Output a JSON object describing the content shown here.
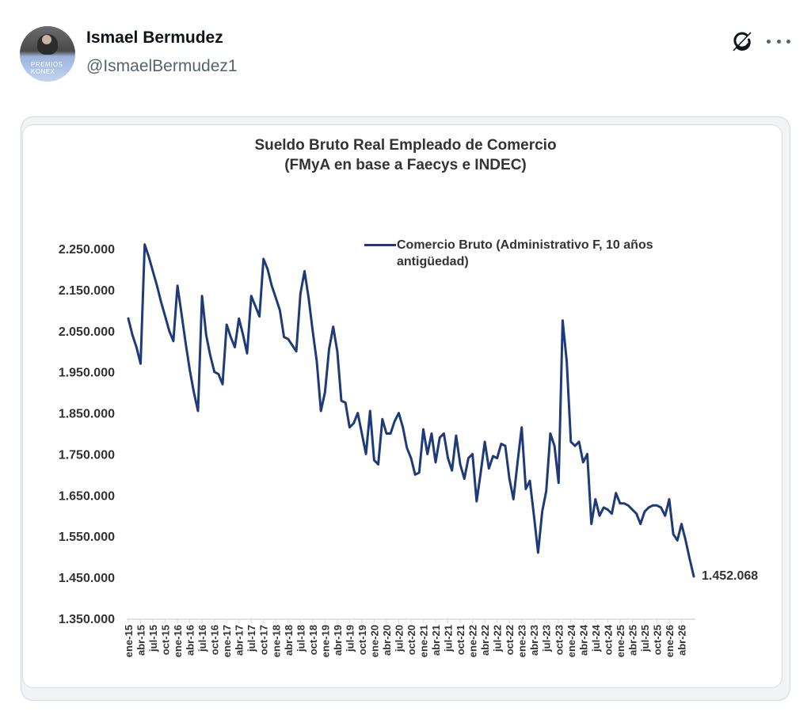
{
  "post": {
    "author_name": "Ismael Bermudez",
    "author_handle": "@IsmaelBermudez1",
    "avatar_caption": "PREMIOS KONEX",
    "icons": {
      "grok": "grok-icon",
      "more": "more-options-icon"
    }
  },
  "chart_data": {
    "type": "line",
    "title": "Sueldo Bruto Real Empleado de Comercio",
    "subtitle": "(FMyA en base a Faecys e INDEC)",
    "xlabel": "",
    "ylabel": "",
    "ylim": [
      1350000,
      2250000
    ],
    "yticks": [
      2250000,
      2150000,
      2050000,
      1950000,
      1850000,
      1750000,
      1650000,
      1550000,
      1450000,
      1350000
    ],
    "ytick_labels": [
      "2.250.000",
      "2.150.000",
      "2.050.000",
      "1.950.000",
      "1.850.000",
      "1.750.000",
      "1.650.000",
      "1.550.000",
      "1.450.000",
      "1.350.000"
    ],
    "xtick_labels": [
      "ene-15",
      "abr-15",
      "jul-15",
      "oct-15",
      "ene-16",
      "abr-16",
      "jul-16",
      "oct-16",
      "ene-17",
      "abr-17",
      "jul-17",
      "oct-17",
      "ene-18",
      "abr-18",
      "jul-18",
      "oct-18",
      "ene-19",
      "abr-19",
      "jul-19",
      "oct-19",
      "ene-20",
      "abr-20",
      "jul-20",
      "oct-20",
      "ene-21",
      "abr-21",
      "jul-21",
      "oct-21",
      "ene-22",
      "abr-22",
      "jul-22",
      "oct-22",
      "ene-23",
      "abr-23",
      "jul-23",
      "oct-23",
      "ene-24",
      "abr-24",
      "jul-24",
      "oct-24",
      "ene-25",
      "abr-25",
      "jul-25",
      "oct-25",
      "ene-26",
      "abr-26"
    ],
    "grid": false,
    "legend": {
      "position": "top-right",
      "entries": [
        "Comercio Bruto (Administrativo F, 10 años antigüedad)"
      ]
    },
    "annotations": [
      {
        "text": "1.452.068",
        "at": "abr-26"
      }
    ],
    "color": "#1f3a78",
    "series": [
      {
        "name": "Comercio Bruto (Administrativo F, 10 años antigüedad)",
        "x_start": "ene-15",
        "frequency": "monthly",
        "values": [
          2080000,
          2040000,
          2010000,
          1970000,
          2260000,
          2230000,
          2195000,
          2160000,
          2120000,
          2085000,
          2050000,
          2025000,
          2160000,
          2090000,
          2020000,
          1955000,
          1900000,
          1855000,
          2135000,
          2040000,
          1990000,
          1950000,
          1945000,
          1920000,
          2065000,
          2035000,
          2010000,
          2080000,
          2040000,
          1995000,
          2135000,
          2110000,
          2085000,
          2225000,
          2200000,
          2160000,
          2130000,
          2100000,
          2035000,
          2030000,
          2015000,
          2000000,
          2140000,
          2195000,
          2130000,
          2050000,
          1975000,
          1855000,
          1900000,
          2005000,
          2060000,
          2000000,
          1880000,
          1875000,
          1815000,
          1825000,
          1850000,
          1800000,
          1750000,
          1855000,
          1735000,
          1725000,
          1835000,
          1800000,
          1800000,
          1830000,
          1850000,
          1815000,
          1765000,
          1740000,
          1700000,
          1705000,
          1810000,
          1750000,
          1800000,
          1730000,
          1790000,
          1800000,
          1740000,
          1710000,
          1795000,
          1725000,
          1690000,
          1740000,
          1750000,
          1635000,
          1705000,
          1780000,
          1715000,
          1745000,
          1740000,
          1775000,
          1770000,
          1690000,
          1640000,
          1730000,
          1815000,
          1665000,
          1685000,
          1600000,
          1510000,
          1610000,
          1660000,
          1800000,
          1770000,
          1680000,
          2075000,
          1975000,
          1780000,
          1770000,
          1780000,
          1730000,
          1750000,
          1580000,
          1640000,
          1600000,
          1620000,
          1615000,
          1605000,
          1655000,
          1630000,
          1630000,
          1625000,
          1615000,
          1605000,
          1580000,
          1610000,
          1620000,
          1625000,
          1625000,
          1620000,
          1600000,
          1640000,
          1555000,
          1540000,
          1580000,
          1540000,
          1495000,
          1452068
        ]
      }
    ]
  }
}
